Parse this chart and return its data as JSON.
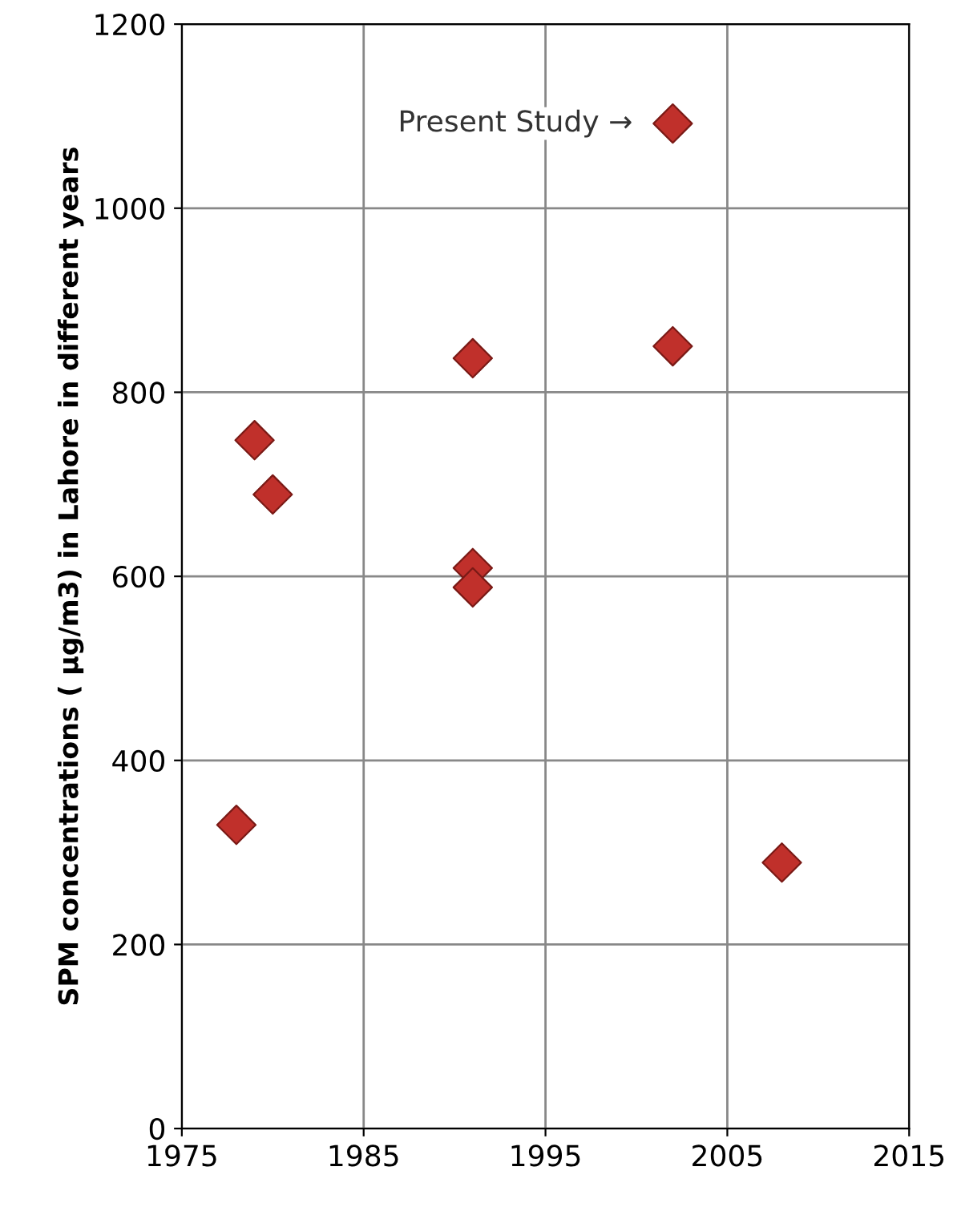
{
  "chart_data": {
    "type": "scatter",
    "ylabel": "SPM concentrations ( µg/m3) in Lahore in different years",
    "x": [
      1978,
      1979,
      1980,
      1991,
      1991,
      1991,
      2002,
      2002,
      2008
    ],
    "series": [
      {
        "color": "#c0302b",
        "values": [
          330,
          748,
          689,
          609,
          588,
          837,
          1092,
          850,
          289
        ]
      }
    ],
    "xlim": [
      1975,
      2015
    ],
    "xticks": [
      1975,
      1985,
      1995,
      2005,
      2015
    ],
    "ylim": [
      0,
      1200
    ],
    "yticks": [
      0,
      200,
      400,
      600,
      800,
      1000,
      1200
    ],
    "grid": true,
    "marker": "diamond",
    "annotations": [
      {
        "text": "Present Study →",
        "x": 2002,
        "y": 1092
      }
    ]
  }
}
